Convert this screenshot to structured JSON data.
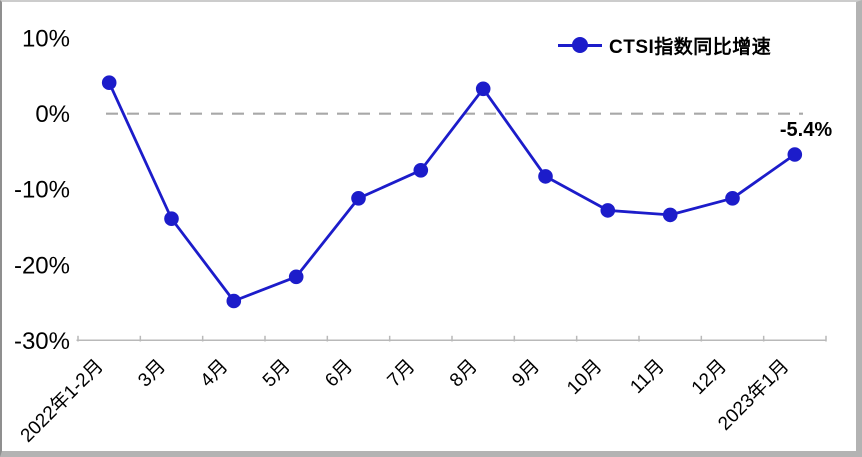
{
  "chart_data": {
    "type": "line",
    "title": "",
    "categories": [
      "2022年1-2月",
      "3月",
      "4月",
      "5月",
      "6月",
      "7月",
      "8月",
      "9月",
      "10月",
      "11月",
      "12月",
      "2023年1月"
    ],
    "series": [
      {
        "name": "CTSI指数同比增速",
        "values": [
          4.1,
          -13.9,
          -24.8,
          -21.6,
          -11.2,
          -7.5,
          3.3,
          -8.3,
          -12.8,
          -13.4,
          -11.2,
          -5.4
        ]
      }
    ],
    "ylim": [
      -30,
      10
    ],
    "ytick_values": [
      10,
      0,
      -10,
      -20,
      -30
    ],
    "ytick_labels": [
      "10%",
      "0%",
      "-10%",
      "-20%",
      "-30%"
    ],
    "grid": "off",
    "zero_line_style": "dashed",
    "legend_position": "top-right",
    "annotation": {
      "text": "-5.4%",
      "category": "2023年1月",
      "value": -5.4
    },
    "colors": {
      "series": "#1c1cca",
      "zero_line": "#a8a8a8",
      "axis": "#b9b9b9",
      "text": "#000000"
    }
  }
}
